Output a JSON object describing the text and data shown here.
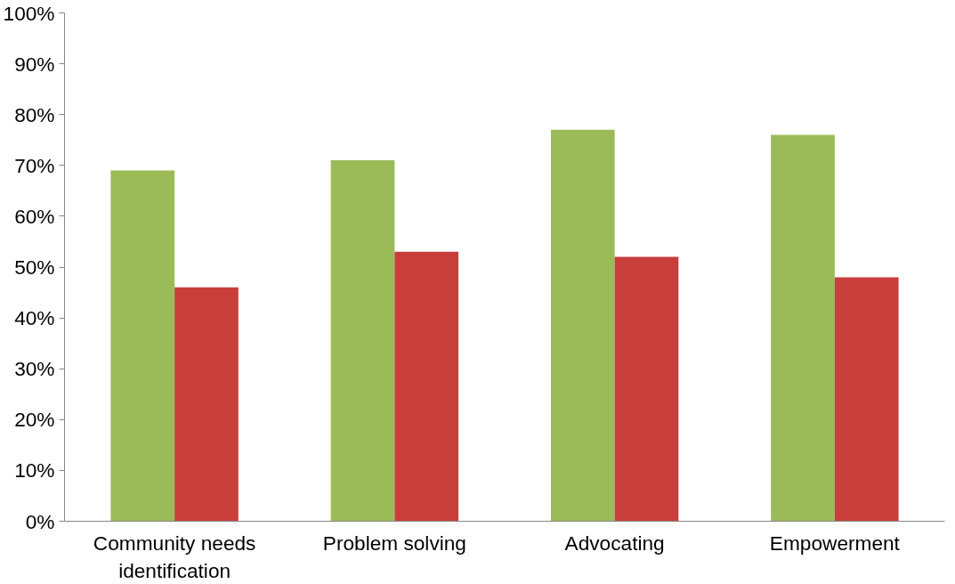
{
  "chart_data": {
    "type": "bar",
    "categories": [
      "Community needs identification",
      "Problem solving",
      "Advocating",
      "Empowerment"
    ],
    "series": [
      {
        "color": "#9bbb59",
        "values": [
          69,
          71,
          77,
          76
        ]
      },
      {
        "color": "#c83e3b",
        "values": [
          46,
          53,
          52,
          48
        ]
      }
    ],
    "ylim": [
      0,
      100
    ],
    "yticks": [
      {
        "value": 0,
        "label": "0%"
      },
      {
        "value": 10,
        "label": "10%"
      },
      {
        "value": 20,
        "label": "20%"
      },
      {
        "value": 30,
        "label": "30%"
      },
      {
        "value": 40,
        "label": "40%"
      },
      {
        "value": 50,
        "label": "50%"
      },
      {
        "value": 60,
        "label": "60%"
      },
      {
        "value": 70,
        "label": "70%"
      },
      {
        "value": 80,
        "label": "80%"
      },
      {
        "value": 90,
        "label": "90%"
      },
      {
        "value": 100,
        "label": "100%"
      }
    ],
    "grid": false
  }
}
